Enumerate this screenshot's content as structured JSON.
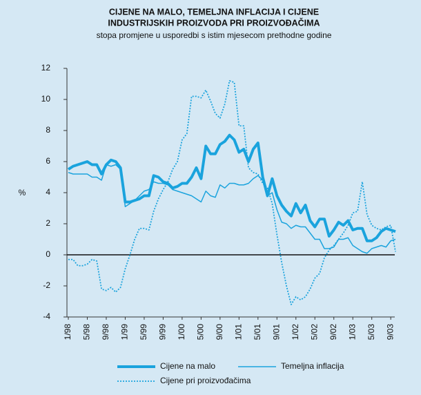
{
  "chart_data": {
    "type": "line",
    "title": [
      "CIJENE NA MALO, TEMELJNA INFLACIJA I CIJENE",
      "INDUSTRIJSKIH PROIZVODA PRI PROIZVOĐAČIMA"
    ],
    "subtitle": "stopa promjene u usporedbi s istim mjesecom prethodne godine",
    "y_label": "%",
    "categories": [
      "1/98",
      null,
      null,
      null,
      "5/98",
      null,
      null,
      null,
      "9/98",
      null,
      null,
      null,
      "1/99",
      null,
      null,
      null,
      "5/99",
      null,
      null,
      null,
      "9/99",
      null,
      null,
      null,
      "1/00",
      null,
      null,
      null,
      "5/00",
      null,
      null,
      null,
      "9/00",
      null,
      null,
      null,
      "1/01",
      null,
      null,
      null,
      "5/01",
      null,
      null,
      null,
      "9/01",
      null,
      null,
      null,
      "1/02",
      null,
      null,
      null,
      "5/02",
      null,
      null,
      null,
      "9/02",
      null,
      null,
      null,
      "1/03",
      null,
      null,
      null,
      "5/03",
      null,
      null,
      null,
      "9/03",
      null
    ],
    "ylim": [
      -4,
      12
    ],
    "yticks": [
      -4,
      -2,
      0,
      2,
      4,
      6,
      8,
      10,
      12
    ],
    "series": [
      {
        "name": "Cijene na malo",
        "color": "#1aa3dd",
        "style": "thick",
        "values": [
          5.5,
          5.7,
          5.8,
          5.9,
          6.0,
          5.8,
          5.8,
          5.2,
          5.8,
          6.1,
          6.0,
          5.6,
          3.4,
          3.4,
          3.5,
          3.6,
          3.8,
          3.8,
          5.1,
          5.0,
          4.7,
          4.6,
          4.3,
          4.4,
          4.6,
          4.6,
          5.0,
          5.6,
          4.9,
          7.0,
          6.5,
          6.5,
          7.1,
          7.3,
          7.7,
          7.4,
          6.6,
          6.8,
          6.0,
          6.8,
          7.2,
          5.0,
          3.8,
          4.9,
          3.8,
          3.2,
          2.8,
          2.5,
          3.3,
          2.7,
          3.2,
          2.2,
          1.8,
          2.3,
          2.3,
          1.2,
          1.6,
          2.1,
          1.9,
          2.2,
          1.6,
          1.7,
          1.7,
          0.9,
          0.9,
          1.1,
          1.5,
          1.7,
          1.6,
          1.5
        ]
      },
      {
        "name": "Temeljna inflacija",
        "color": "#1aa3dd",
        "style": "thin",
        "values": [
          5.3,
          5.2,
          5.2,
          5.2,
          5.2,
          5.0,
          5.0,
          4.8,
          5.8,
          5.7,
          5.8,
          5.5,
          3.1,
          3.3,
          3.5,
          3.8,
          4.1,
          4.2,
          4.7,
          4.6,
          4.6,
          4.5,
          4.2,
          4.1,
          4.0,
          3.9,
          3.8,
          3.6,
          3.4,
          4.1,
          3.8,
          3.7,
          4.5,
          4.3,
          4.6,
          4.6,
          4.5,
          4.5,
          4.6,
          4.9,
          5.1,
          4.8,
          3.8,
          4.0,
          2.9,
          2.1,
          2.0,
          1.7,
          1.9,
          1.8,
          1.8,
          1.4,
          1.0,
          1.0,
          0.4,
          0.4,
          0.5,
          1.0,
          1.0,
          1.1,
          0.6,
          0.4,
          0.2,
          0.1,
          0.4,
          0.5,
          0.6,
          0.5,
          0.9,
          1.0
        ]
      },
      {
        "name": "Cijene pri proizvođačima",
        "color": "#1aa3dd",
        "style": "dotted",
        "values": [
          -0.3,
          -0.3,
          -0.7,
          -0.7,
          -0.6,
          -0.3,
          -0.4,
          -2.2,
          -2.3,
          -2.1,
          -2.4,
          -2.1,
          -0.9,
          0.0,
          1.0,
          1.7,
          1.7,
          1.6,
          2.8,
          3.6,
          4.2,
          4.7,
          5.5,
          6.0,
          7.4,
          7.8,
          10.2,
          10.2,
          10.1,
          10.6,
          9.9,
          9.1,
          8.8,
          9.7,
          11.2,
          11.1,
          8.3,
          8.3,
          5.6,
          5.3,
          5.2,
          4.6,
          4.3,
          3.3,
          1.3,
          -0.5,
          -2.0,
          -3.2,
          -2.7,
          -2.9,
          -2.7,
          -2.2,
          -1.5,
          -1.2,
          -0.2,
          0.3,
          0.6,
          1.0,
          1.4,
          1.9,
          2.7,
          2.8,
          4.7,
          2.6,
          1.9,
          1.7,
          1.6,
          1.8,
          1.9,
          0.2
        ]
      }
    ]
  }
}
